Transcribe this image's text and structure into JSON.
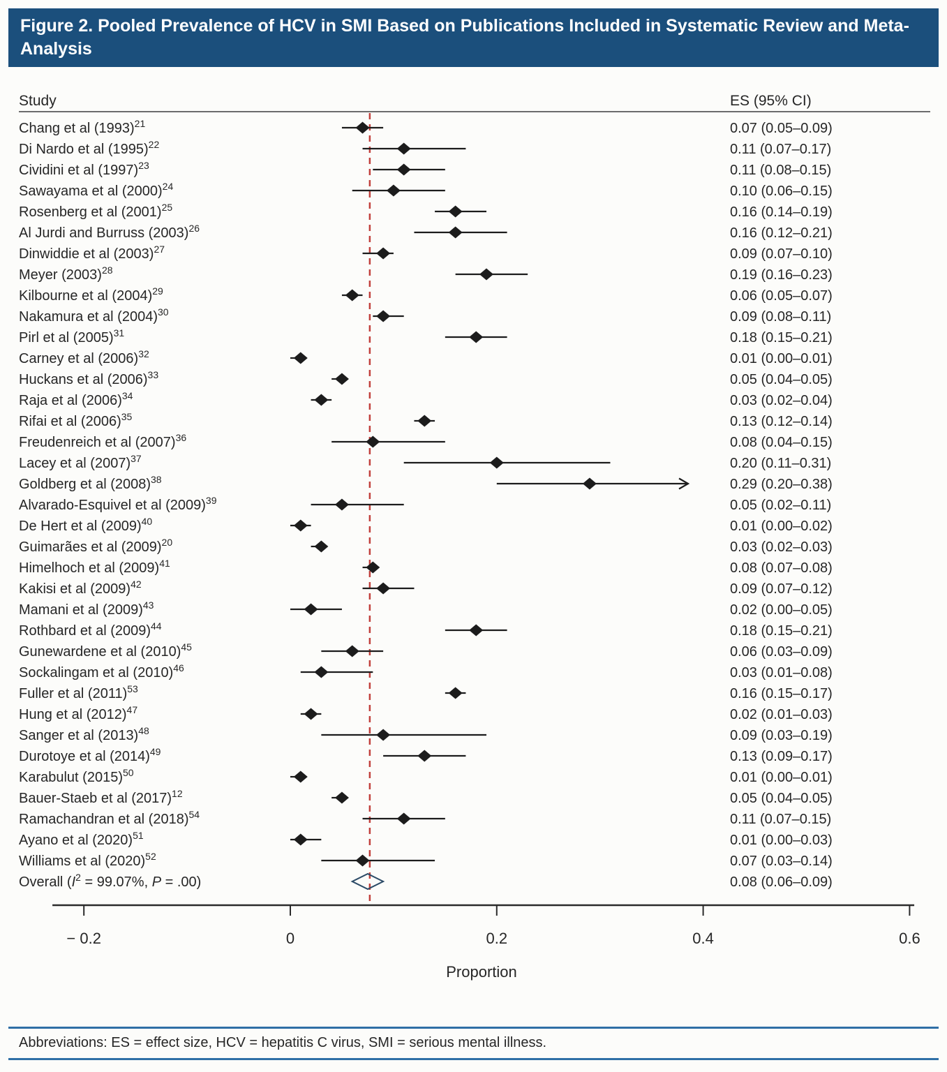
{
  "title": "Figure 2. Pooled Prevalence of HCV in SMI Based on Publications Included in Systematic Review and Meta-Analysis",
  "columns": {
    "study": "Study",
    "es": "ES (95% CI)"
  },
  "footer": {
    "abbreviations": "Abbreviations: ES = effect size, HCV = hepatitis C virus, SMI = serious mental illness."
  },
  "colors": {
    "title_bg": "#1b4f7c",
    "title_text": "#ffffff",
    "text": "#262626",
    "marker": "#1c1c1c",
    "axis": "#2b2b2b",
    "null_line": "#c2403c",
    "overall_diamond": "#2b4a66",
    "footer_rule": "#2f6fa6"
  },
  "chart_data": {
    "type": "forest",
    "title": "Pooled Prevalence of HCV in SMI",
    "xlabel": "Proportion",
    "xlim": [
      -0.2305,
      0.6045
    ],
    "x_ticks": [
      {
        "value": -0.2,
        "label": "− 0.2"
      },
      {
        "value": 0,
        "label": "0"
      },
      {
        "value": 0.2,
        "label": "0.2"
      },
      {
        "value": 0.4,
        "label": "0.4"
      },
      {
        "value": 0.6,
        "label": "0.6"
      }
    ],
    "dashed_line_value": 0.077,
    "overall_label": {
      "prefix": "Overall (",
      "stat1": "I",
      "stat1_sup": "2",
      "mid": " = 99.07%, ",
      "stat2": "P",
      "suffix": " = .00)"
    },
    "studies": [
      {
        "label": "Chang et al (1993)",
        "ref": "21",
        "es": 0.07,
        "ci_low": 0.05,
        "ci_high": 0.09,
        "display": "0.07 (0.05–0.09)"
      },
      {
        "label": "Di Nardo et al (1995)",
        "ref": "22",
        "es": 0.11,
        "ci_low": 0.07,
        "ci_high": 0.17,
        "display": "0.11 (0.07–0.17)"
      },
      {
        "label": "Cividini et al (1997)",
        "ref": "23",
        "es": 0.11,
        "ci_low": 0.08,
        "ci_high": 0.15,
        "display": "0.11 (0.08–0.15)"
      },
      {
        "label": "Sawayama et al (2000)",
        "ref": "24",
        "es": 0.1,
        "ci_low": 0.06,
        "ci_high": 0.15,
        "display": "0.10 (0.06–0.15)"
      },
      {
        "label": "Rosenberg et al (2001)",
        "ref": "25",
        "es": 0.16,
        "ci_low": 0.14,
        "ci_high": 0.19,
        "display": "0.16 (0.14–0.19)"
      },
      {
        "label": "Al Jurdi and Burruss (2003)",
        "ref": "26",
        "es": 0.16,
        "ci_low": 0.12,
        "ci_high": 0.21,
        "display": "0.16 (0.12–0.21)"
      },
      {
        "label": "Dinwiddie et al (2003)",
        "ref": "27",
        "es": 0.09,
        "ci_low": 0.07,
        "ci_high": 0.1,
        "display": "0.09 (0.07–0.10)"
      },
      {
        "label": "Meyer (2003)",
        "ref": "28",
        "es": 0.19,
        "ci_low": 0.16,
        "ci_high": 0.23,
        "display": "0.19 (0.16–0.23)"
      },
      {
        "label": "Kilbourne et al (2004)",
        "ref": "29",
        "es": 0.06,
        "ci_low": 0.05,
        "ci_high": 0.07,
        "display": "0.06 (0.05–0.07)"
      },
      {
        "label": "Nakamura et al (2004)",
        "ref": "30",
        "es": 0.09,
        "ci_low": 0.08,
        "ci_high": 0.11,
        "display": "0.09 (0.08–0.11)"
      },
      {
        "label": "Pirl et al (2005)",
        "ref": "31",
        "es": 0.18,
        "ci_low": 0.15,
        "ci_high": 0.21,
        "display": "0.18 (0.15–0.21)"
      },
      {
        "label": "Carney et al (2006)",
        "ref": "32",
        "es": 0.01,
        "ci_low": 0.0,
        "ci_high": 0.01,
        "display": "0.01 (0.00–0.01)"
      },
      {
        "label": "Huckans et al (2006)",
        "ref": "33",
        "es": 0.05,
        "ci_low": 0.04,
        "ci_high": 0.05,
        "display": "0.05 (0.04–0.05)"
      },
      {
        "label": "Raja et al (2006)",
        "ref": "34",
        "es": 0.03,
        "ci_low": 0.02,
        "ci_high": 0.04,
        "display": "0.03 (0.02–0.04)"
      },
      {
        "label": "Rifai et al (2006)",
        "ref": "35",
        "es": 0.13,
        "ci_low": 0.12,
        "ci_high": 0.14,
        "display": "0.13 (0.12–0.14)"
      },
      {
        "label": "Freudenreich et al (2007)",
        "ref": "36",
        "es": 0.08,
        "ci_low": 0.04,
        "ci_high": 0.15,
        "display": "0.08 (0.04–0.15)"
      },
      {
        "label": "Lacey et al (2007)",
        "ref": "37",
        "es": 0.2,
        "ci_low": 0.11,
        "ci_high": 0.31,
        "display": "0.20 (0.11–0.31)"
      },
      {
        "label": "Goldberg et al (2008)",
        "ref": "38",
        "es": 0.29,
        "ci_low": 0.2,
        "ci_high": 0.38,
        "display": "0.29 (0.20–0.38)",
        "arrow": true
      },
      {
        "label": "Alvarado-Esquivel et al (2009)",
        "ref": "39",
        "es": 0.05,
        "ci_low": 0.02,
        "ci_high": 0.11,
        "display": "0.05 (0.02–0.11)"
      },
      {
        "label": "De Hert et al (2009)",
        "ref": "40",
        "es": 0.01,
        "ci_low": 0.0,
        "ci_high": 0.02,
        "display": "0.01 (0.00–0.02)"
      },
      {
        "label": "Guimarães et al (2009)",
        "ref": "20",
        "es": 0.03,
        "ci_low": 0.02,
        "ci_high": 0.03,
        "display": "0.03 (0.02–0.03)"
      },
      {
        "label": "Himelhoch et al (2009)",
        "ref": "41",
        "es": 0.08,
        "ci_low": 0.07,
        "ci_high": 0.08,
        "display": "0.08 (0.07–0.08)"
      },
      {
        "label": "Kakisi et al (2009)",
        "ref": "42",
        "es": 0.09,
        "ci_low": 0.07,
        "ci_high": 0.12,
        "display": "0.09 (0.07–0.12)"
      },
      {
        "label": "Mamani et al (2009)",
        "ref": "43",
        "es": 0.02,
        "ci_low": 0.0,
        "ci_high": 0.05,
        "display": "0.02 (0.00–0.05)"
      },
      {
        "label": "Rothbard et al (2009)",
        "ref": "44",
        "es": 0.18,
        "ci_low": 0.15,
        "ci_high": 0.21,
        "display": "0.18 (0.15–0.21)"
      },
      {
        "label": "Gunewardene et al (2010)",
        "ref": "45",
        "es": 0.06,
        "ci_low": 0.03,
        "ci_high": 0.09,
        "display": "0.06 (0.03–0.09)"
      },
      {
        "label": "Sockalingam et al (2010)",
        "ref": "46",
        "es": 0.03,
        "ci_low": 0.01,
        "ci_high": 0.08,
        "display": "0.03 (0.01–0.08)"
      },
      {
        "label": "Fuller et al (2011)",
        "ref": "53",
        "es": 0.16,
        "ci_low": 0.15,
        "ci_high": 0.17,
        "display": "0.16 (0.15–0.17)"
      },
      {
        "label": "Hung et al (2012)",
        "ref": "47",
        "es": 0.02,
        "ci_low": 0.01,
        "ci_high": 0.03,
        "display": "0.02 (0.01–0.03)"
      },
      {
        "label": "Sanger et al (2013)",
        "ref": "48",
        "es": 0.09,
        "ci_low": 0.03,
        "ci_high": 0.19,
        "display": "0.09 (0.03–0.19)"
      },
      {
        "label": "Durotoye et al (2014)",
        "ref": "49",
        "es": 0.13,
        "ci_low": 0.09,
        "ci_high": 0.17,
        "display": "0.13 (0.09–0.17)"
      },
      {
        "label": "Karabulut (2015)",
        "ref": "50",
        "es": 0.01,
        "ci_low": 0.0,
        "ci_high": 0.01,
        "display": "0.01 (0.00–0.01)"
      },
      {
        "label": "Bauer-Staeb et al (2017)",
        "ref": "12",
        "es": 0.05,
        "ci_low": 0.04,
        "ci_high": 0.05,
        "display": "0.05 (0.04–0.05)"
      },
      {
        "label": "Ramachandran et al (2018)",
        "ref": "54",
        "es": 0.11,
        "ci_low": 0.07,
        "ci_high": 0.15,
        "display": "0.11 (0.07–0.15)"
      },
      {
        "label": "Ayano et al (2020)",
        "ref": "51",
        "es": 0.01,
        "ci_low": 0.0,
        "ci_high": 0.03,
        "display": "0.01 (0.00–0.03)"
      },
      {
        "label": "Williams et al (2020)",
        "ref": "52",
        "es": 0.07,
        "ci_low": 0.03,
        "ci_high": 0.14,
        "display": "0.07 (0.03–0.14)"
      },
      {
        "overall": true,
        "es": 0.08,
        "ci_low": 0.06,
        "ci_high": 0.09,
        "display": "0.08 (0.06–0.09)"
      }
    ]
  }
}
